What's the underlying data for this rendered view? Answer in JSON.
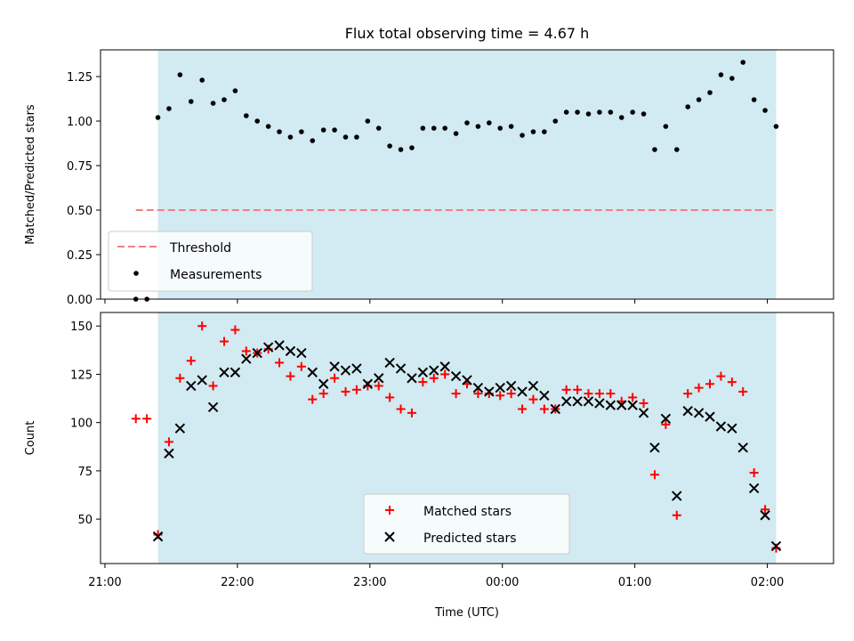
{
  "chart_data": [
    {
      "type": "scatter",
      "title": "Flux total observing time = 4.67 h",
      "xlabel": "",
      "ylabel": "Matched/Predicted stars",
      "xlim": [
        "20:58",
        "02:30"
      ],
      "ylim": [
        0,
        1.4
      ],
      "yticks": [
        0.0,
        0.25,
        0.5,
        0.75,
        1.0,
        1.25
      ],
      "ytick_labels": [
        "0.00",
        "0.25",
        "0.50",
        "0.75",
        "1.00",
        "1.25"
      ],
      "xticks": [
        "21:00",
        "22:00",
        "23:00",
        "00:00",
        "01:00",
        "02:00"
      ],
      "shaded_region": {
        "start": "21:24",
        "end": "02:04",
        "color": "#add8e6"
      },
      "threshold": {
        "name": "Threshold",
        "y": 0.5,
        "start": "21:14",
        "end": "02:04",
        "color": "#f08080",
        "style": "dashed"
      },
      "legend": {
        "placement": "lower-left",
        "entries": [
          "Threshold",
          "Measurements"
        ]
      },
      "series": [
        {
          "name": "Measurements",
          "color": "#000000",
          "marker": "dot",
          "points": [
            [
              "21:14",
              0.0
            ],
            [
              "21:19",
              0.0
            ],
            [
              "21:24",
              1.02
            ],
            [
              "21:29",
              1.07
            ],
            [
              "21:34",
              1.26
            ],
            [
              "21:39",
              1.11
            ],
            [
              "21:44",
              1.23
            ],
            [
              "21:49",
              1.1
            ],
            [
              "21:54",
              1.12
            ],
            [
              "21:59",
              1.17
            ],
            [
              "22:04",
              1.03
            ],
            [
              "22:09",
              1.0
            ],
            [
              "22:14",
              0.97
            ],
            [
              "22:19",
              0.94
            ],
            [
              "22:24",
              0.91
            ],
            [
              "22:29",
              0.94
            ],
            [
              "22:34",
              0.89
            ],
            [
              "22:39",
              0.95
            ],
            [
              "22:44",
              0.95
            ],
            [
              "22:49",
              0.91
            ],
            [
              "22:54",
              0.91
            ],
            [
              "22:59",
              1.0
            ],
            [
              "23:04",
              0.96
            ],
            [
              "23:09",
              0.86
            ],
            [
              "23:14",
              0.84
            ],
            [
              "23:19",
              0.85
            ],
            [
              "23:24",
              0.96
            ],
            [
              "23:29",
              0.96
            ],
            [
              "23:34",
              0.96
            ],
            [
              "23:39",
              0.93
            ],
            [
              "23:44",
              0.99
            ],
            [
              "23:49",
              0.97
            ],
            [
              "23:54",
              0.99
            ],
            [
              "23:59",
              0.96
            ],
            [
              "00:04",
              0.97
            ],
            [
              "00:09",
              0.92
            ],
            [
              "00:14",
              0.94
            ],
            [
              "00:19",
              0.94
            ],
            [
              "00:24",
              1.0
            ],
            [
              "00:29",
              1.05
            ],
            [
              "00:34",
              1.05
            ],
            [
              "00:39",
              1.04
            ],
            [
              "00:44",
              1.05
            ],
            [
              "00:49",
              1.05
            ],
            [
              "00:54",
              1.02
            ],
            [
              "00:59",
              1.05
            ],
            [
              "01:04",
              1.04
            ],
            [
              "01:09",
              0.84
            ],
            [
              "01:14",
              0.97
            ],
            [
              "01:19",
              0.84
            ],
            [
              "01:24",
              1.08
            ],
            [
              "01:29",
              1.12
            ],
            [
              "01:34",
              1.16
            ],
            [
              "01:39",
              1.26
            ],
            [
              "01:44",
              1.24
            ],
            [
              "01:49",
              1.33
            ],
            [
              "01:54",
              1.12
            ],
            [
              "01:59",
              1.06
            ],
            [
              "02:04",
              0.97
            ]
          ]
        }
      ]
    },
    {
      "type": "scatter",
      "title": "",
      "xlabel": "Time (UTC)",
      "ylabel": "Count",
      "xlim": [
        "20:58",
        "02:30"
      ],
      "ylim": [
        27,
        157
      ],
      "yticks": [
        50,
        75,
        100,
        125,
        150
      ],
      "ytick_labels": [
        "50",
        "75",
        "100",
        "125",
        "150"
      ],
      "xticks": [
        "21:00",
        "22:00",
        "23:00",
        "00:00",
        "01:00",
        "02:00"
      ],
      "xtick_labels": [
        "21:00",
        "22:00",
        "23:00",
        "00:00",
        "01:00",
        "02:00"
      ],
      "shaded_region": {
        "start": "21:24",
        "end": "02:04",
        "color": "#add8e6"
      },
      "legend": {
        "placement": "lower-center",
        "entries": [
          "Matched stars",
          "Predicted stars"
        ]
      },
      "series": [
        {
          "name": "Matched stars",
          "color": "#ff0000",
          "marker": "plus",
          "points": [
            [
              "21:14",
              102
            ],
            [
              "21:19",
              102
            ],
            [
              "21:24",
              42
            ],
            [
              "21:29",
              90
            ],
            [
              "21:34",
              123
            ],
            [
              "21:39",
              132
            ],
            [
              "21:44",
              150
            ],
            [
              "21:49",
              119
            ],
            [
              "21:54",
              142
            ],
            [
              "21:59",
              148
            ],
            [
              "22:04",
              137
            ],
            [
              "22:09",
              136
            ],
            [
              "22:14",
              138
            ],
            [
              "22:19",
              131
            ],
            [
              "22:24",
              124
            ],
            [
              "22:29",
              129
            ],
            [
              "22:34",
              112
            ],
            [
              "22:39",
              115
            ],
            [
              "22:44",
              123
            ],
            [
              "22:49",
              116
            ],
            [
              "22:54",
              117
            ],
            [
              "22:59",
              119
            ],
            [
              "23:04",
              119
            ],
            [
              "23:09",
              113
            ],
            [
              "23:14",
              107
            ],
            [
              "23:19",
              105
            ],
            [
              "23:24",
              121
            ],
            [
              "23:29",
              123
            ],
            [
              "23:34",
              125
            ],
            [
              "23:39",
              115
            ],
            [
              "23:44",
              120
            ],
            [
              "23:49",
              115
            ],
            [
              "23:54",
              115
            ],
            [
              "23:59",
              114
            ],
            [
              "00:04",
              115
            ],
            [
              "00:09",
              107
            ],
            [
              "00:14",
              112
            ],
            [
              "00:19",
              107
            ],
            [
              "00:24",
              107
            ],
            [
              "00:29",
              117
            ],
            [
              "00:34",
              117
            ],
            [
              "00:39",
              115
            ],
            [
              "00:44",
              115
            ],
            [
              "00:49",
              115
            ],
            [
              "00:54",
              111
            ],
            [
              "00:59",
              113
            ],
            [
              "01:04",
              110
            ],
            [
              "01:09",
              73
            ],
            [
              "01:14",
              99
            ],
            [
              "01:19",
              52
            ],
            [
              "01:24",
              115
            ],
            [
              "01:29",
              118
            ],
            [
              "01:34",
              120
            ],
            [
              "01:39",
              124
            ],
            [
              "01:44",
              121
            ],
            [
              "01:49",
              116
            ],
            [
              "01:54",
              74
            ],
            [
              "01:59",
              55
            ],
            [
              "02:04",
              35
            ]
          ]
        },
        {
          "name": "Predicted stars",
          "color": "#000000",
          "marker": "x",
          "points": [
            [
              "21:24",
              41
            ],
            [
              "21:29",
              84
            ],
            [
              "21:34",
              97
            ],
            [
              "21:39",
              119
            ],
            [
              "21:44",
              122
            ],
            [
              "21:49",
              108
            ],
            [
              "21:54",
              126
            ],
            [
              "21:59",
              126
            ],
            [
              "22:04",
              133
            ],
            [
              "22:09",
              136
            ],
            [
              "22:14",
              139
            ],
            [
              "22:19",
              140
            ],
            [
              "22:24",
              137
            ],
            [
              "22:29",
              136
            ],
            [
              "22:34",
              126
            ],
            [
              "22:39",
              120
            ],
            [
              "22:44",
              129
            ],
            [
              "22:49",
              127
            ],
            [
              "22:54",
              128
            ],
            [
              "22:59",
              120
            ],
            [
              "23:04",
              123
            ],
            [
              "23:09",
              131
            ],
            [
              "23:14",
              128
            ],
            [
              "23:19",
              123
            ],
            [
              "23:24",
              126
            ],
            [
              "23:29",
              127
            ],
            [
              "23:34",
              129
            ],
            [
              "23:39",
              124
            ],
            [
              "23:44",
              122
            ],
            [
              "23:49",
              118
            ],
            [
              "23:54",
              116
            ],
            [
              "23:59",
              118
            ],
            [
              "00:04",
              119
            ],
            [
              "00:09",
              116
            ],
            [
              "00:14",
              119
            ],
            [
              "00:19",
              114
            ],
            [
              "00:24",
              107
            ],
            [
              "00:29",
              111
            ],
            [
              "00:34",
              111
            ],
            [
              "00:39",
              111
            ],
            [
              "00:44",
              110
            ],
            [
              "00:49",
              109
            ],
            [
              "00:54",
              109
            ],
            [
              "00:59",
              109
            ],
            [
              "01:04",
              105
            ],
            [
              "01:09",
              87
            ],
            [
              "01:14",
              102
            ],
            [
              "01:19",
              62
            ],
            [
              "01:24",
              106
            ],
            [
              "01:29",
              105
            ],
            [
              "01:34",
              103
            ],
            [
              "01:39",
              98
            ],
            [
              "01:44",
              97
            ],
            [
              "01:49",
              87
            ],
            [
              "01:54",
              66
            ],
            [
              "01:59",
              52
            ],
            [
              "02:04",
              36
            ]
          ]
        }
      ]
    }
  ]
}
